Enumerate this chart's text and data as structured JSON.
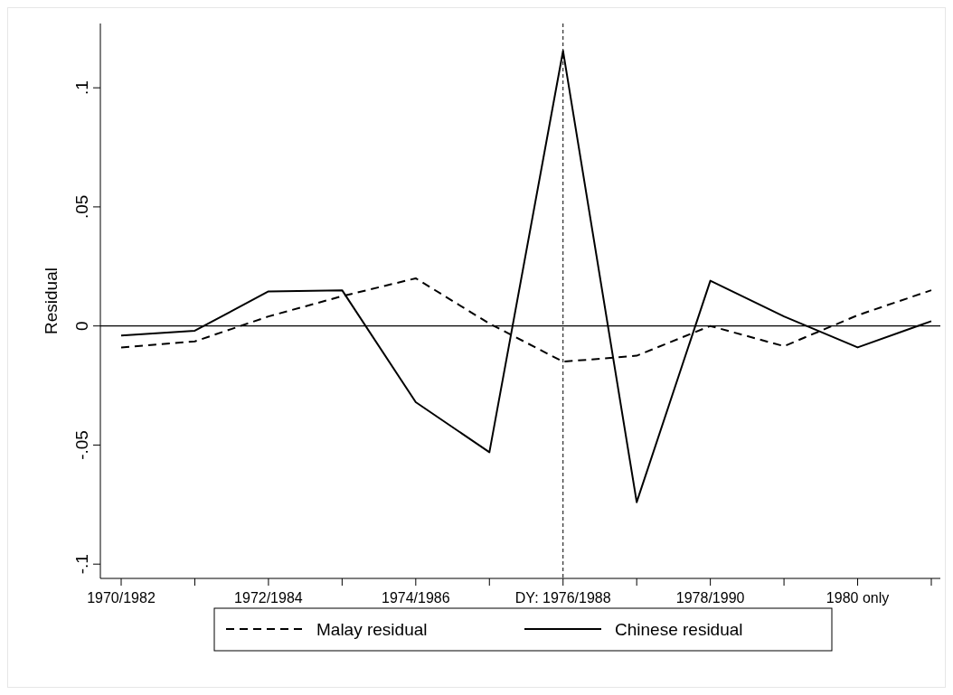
{
  "chart_data": {
    "type": "line",
    "ylabel": "Residual",
    "categories": [
      "1970/1982",
      null,
      "1972/1984",
      null,
      "1974/1986",
      null,
      "DY: 1976/1988",
      null,
      "1978/1990",
      null,
      "1980 only",
      null
    ],
    "series": [
      {
        "name": "Malay residual",
        "color": "#000000",
        "line_style": "dashed",
        "values": [
          -0.009,
          -0.0065,
          0.004,
          0.0125,
          0.02,
          0.001,
          -0.015,
          -0.0125,
          0,
          -0.0085,
          0.0045,
          0.015
        ]
      },
      {
        "name": "Chinese residual",
        "color": "#000000",
        "line_style": "solid",
        "values": [
          -0.004,
          -0.002,
          0.0145,
          0.015,
          -0.032,
          -0.053,
          0.1155,
          -0.074,
          0.019,
          0.004,
          -0.009,
          0.002
        ]
      }
    ],
    "ylim": [
      -0.106,
      0.127
    ],
    "yticks": [
      {
        "value": -0.1,
        "label": "-.1"
      },
      {
        "value": -0.05,
        "label": "-.05"
      },
      0,
      {
        "value": 0.05,
        "label": ".05"
      },
      {
        "value": 0.1,
        "label": ".1"
      }
    ],
    "ref_lines": [
      {
        "axis": "y",
        "value": 0,
        "color": "#000000",
        "line_style": "solid"
      },
      {
        "axis": "x",
        "value": "DY: 1976/1988",
        "color": "#000000",
        "line_style": "dashed"
      }
    ],
    "legend": "bottom",
    "grid": false
  }
}
